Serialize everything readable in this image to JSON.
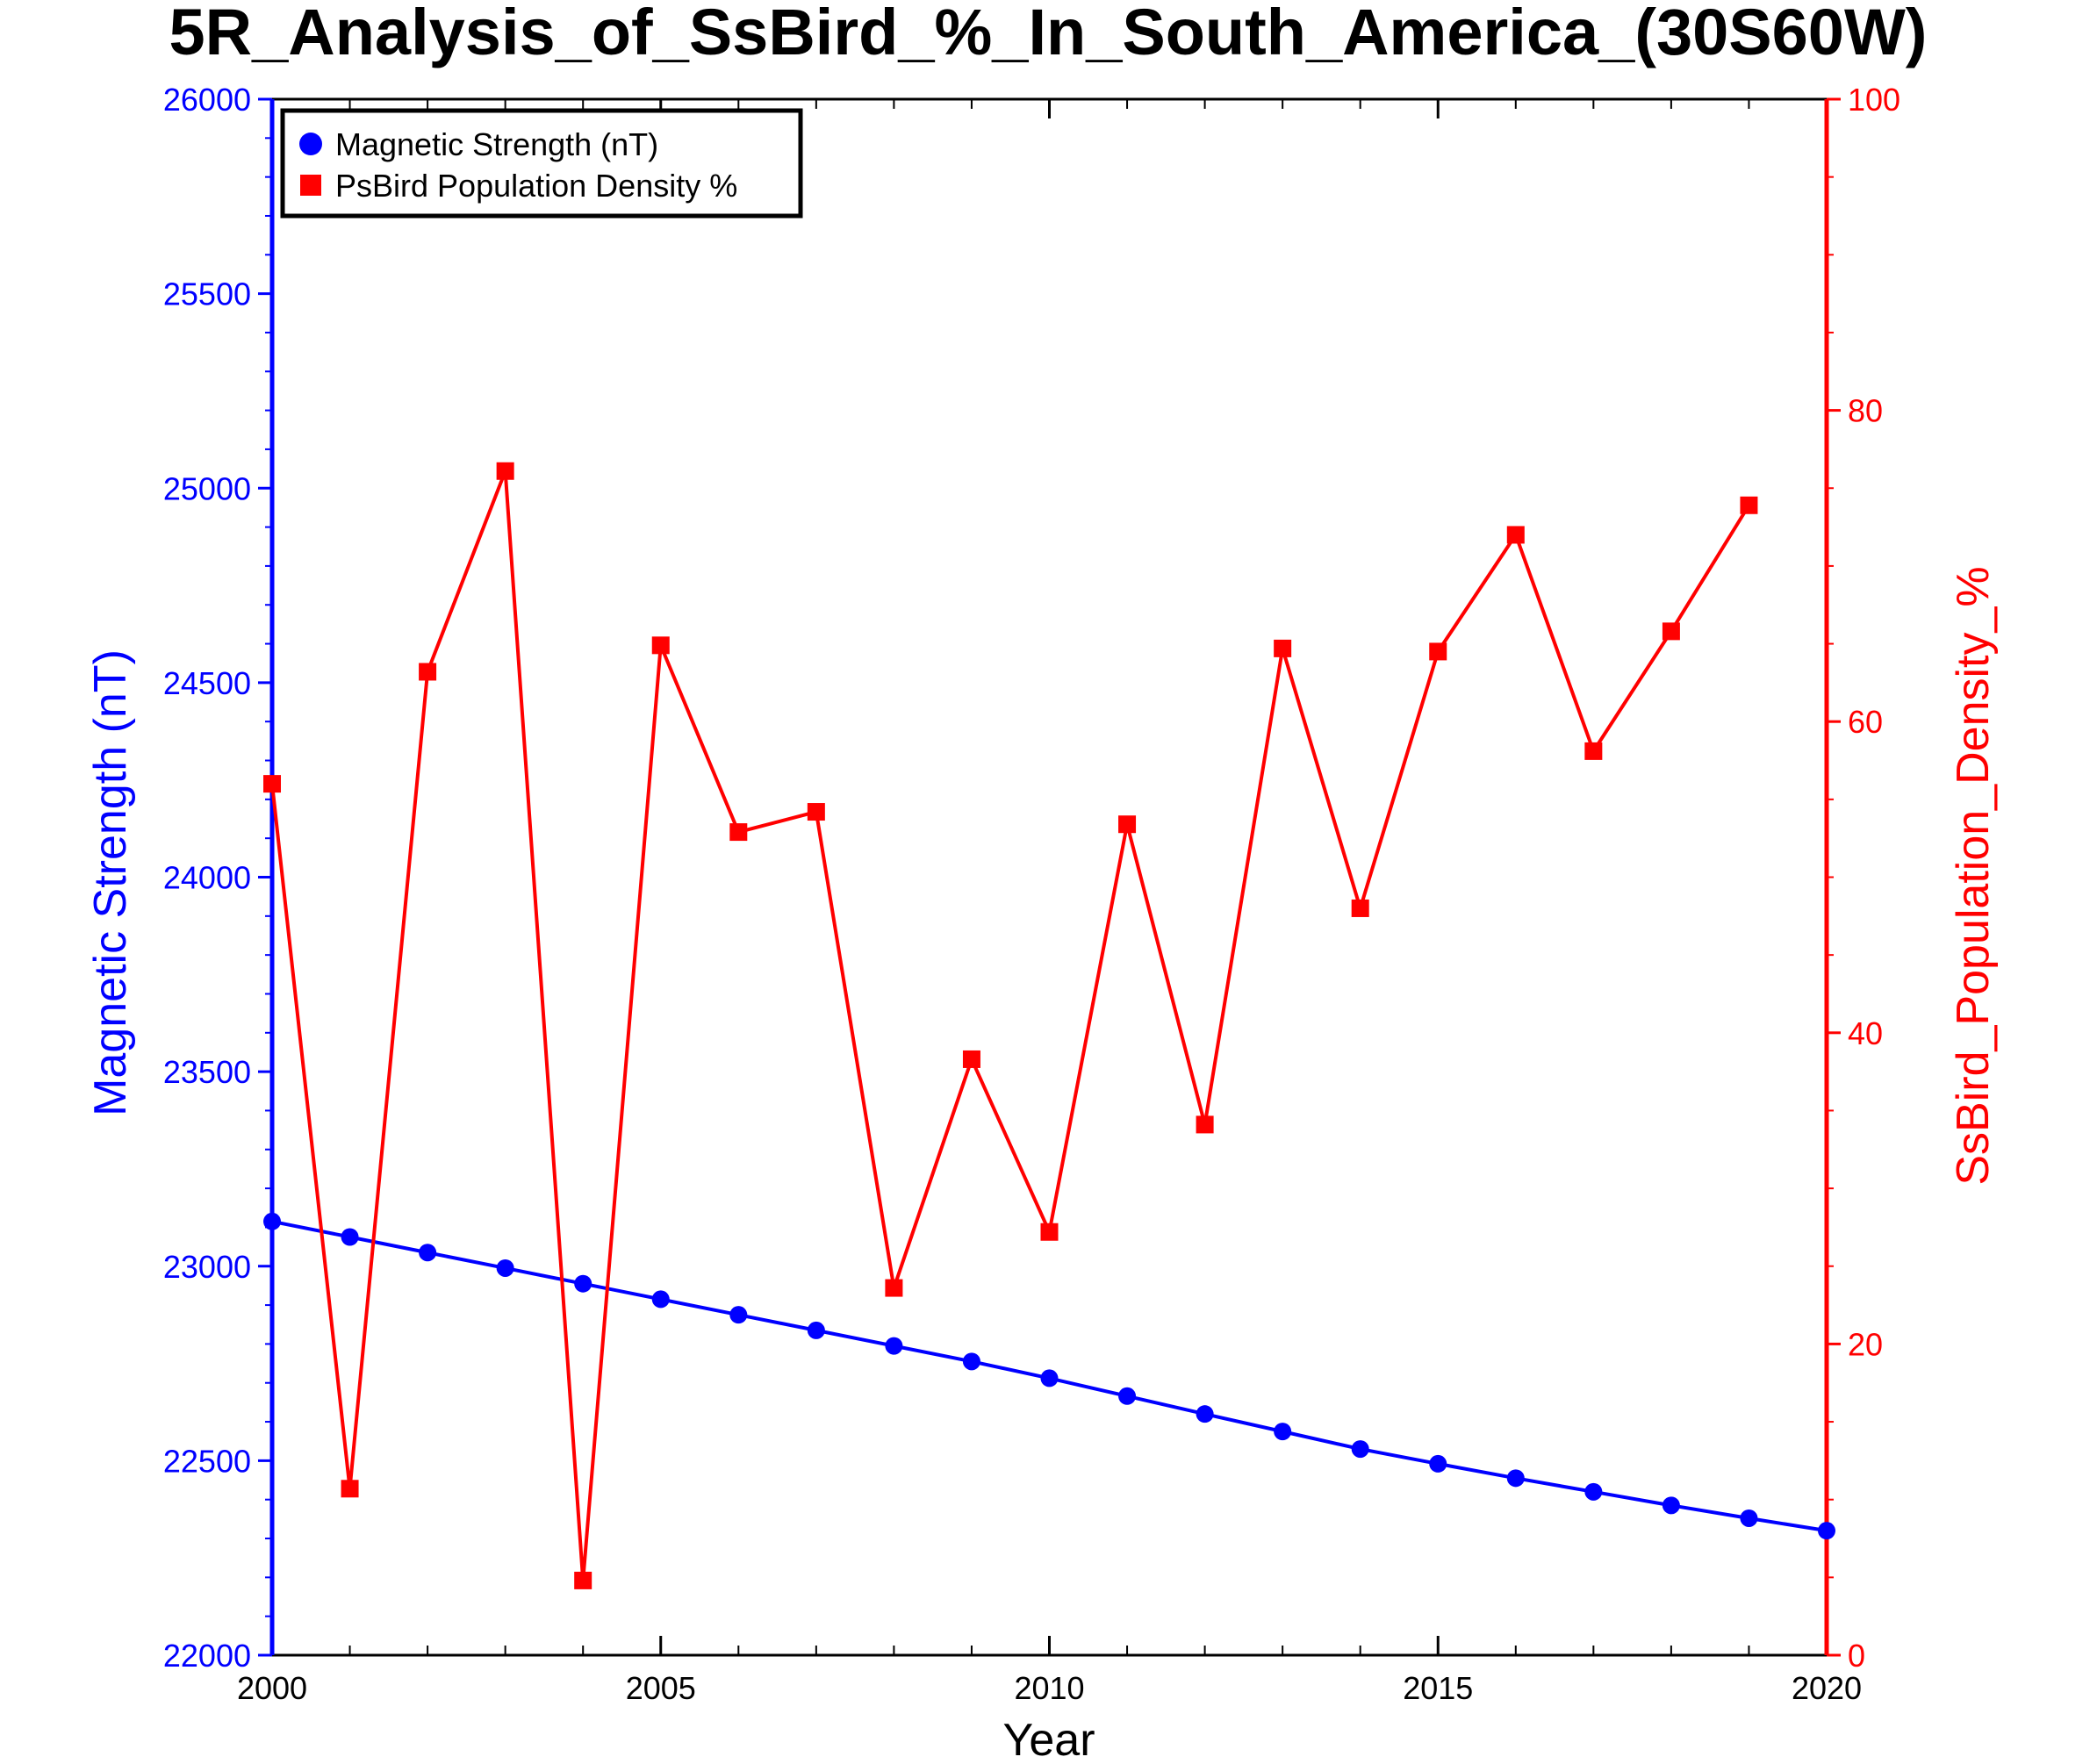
{
  "chart_data": {
    "type": "line",
    "title": "5R_Analysis_of_SsBird_%_In_South_America_(30S60W)",
    "xlabel": "Year",
    "ylabel_left": "Magnetic Strength (nT)",
    "ylabel_right": "SsBird_Population_Density_%",
    "xlim": [
      2000,
      2020
    ],
    "ylim_left": [
      22000,
      26000
    ],
    "ylim_right": [
      0,
      100
    ],
    "x_ticks": [
      "2000",
      "2005",
      "2010",
      "2015",
      "2020"
    ],
    "y_left_ticks": [
      "22000",
      "22500",
      "23000",
      "23500",
      "24000",
      "24500",
      "25000",
      "25500",
      "26000"
    ],
    "y_right_ticks": [
      "0",
      "20",
      "40",
      "60",
      "80",
      "100"
    ],
    "grid": false,
    "legend_position": "top-left",
    "colors": {
      "magnetic": "#0000ff",
      "density": "#ff0000"
    },
    "series": [
      {
        "name": "Magnetic Strength (nT)",
        "axis": "left",
        "marker": "circle",
        "x": [
          2000,
          2001,
          2002,
          2003,
          2004,
          2005,
          2006,
          2007,
          2008,
          2009,
          2010,
          2011,
          2012,
          2013,
          2014,
          2015,
          2016,
          2017,
          2018,
          2019,
          2020
        ],
        "values": [
          23115,
          23075,
          23035,
          22995,
          22955,
          22915,
          22875,
          22835,
          22795,
          22755,
          22712,
          22666,
          22620,
          22575,
          22530,
          22492,
          22455,
          22420,
          22385,
          22352,
          22320
        ]
      },
      {
        "name": "PsBird Population Density %",
        "axis": "right",
        "marker": "square",
        "x": [
          2000,
          2001,
          2002,
          2003,
          2004,
          2005,
          2006,
          2007,
          2008,
          2009,
          2010,
          2011,
          2012,
          2013,
          2014,
          2015,
          2016,
          2017,
          2018,
          2019
        ],
        "values": [
          56.0,
          10.7,
          63.2,
          76.1,
          4.8,
          64.9,
          52.9,
          54.2,
          23.6,
          38.3,
          27.2,
          53.4,
          34.1,
          64.7,
          48.0,
          64.5,
          72.0,
          58.1,
          65.8,
          73.9
        ]
      }
    ]
  }
}
